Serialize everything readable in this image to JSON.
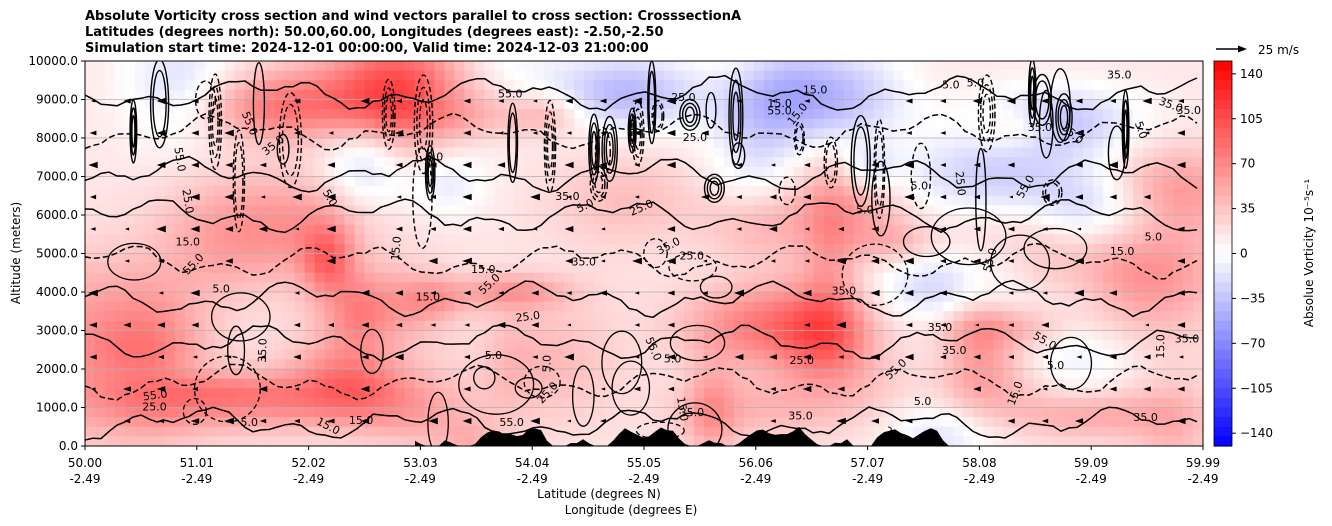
{
  "chart_data": {
    "type": "heatmap",
    "title_lines": [
      "Absolute Vorticity cross section and wind vectors parallel to cross section: CrosssectionA",
      "Latitudes (degrees north): 50.00,60.00, Longitudes (degrees east): -2.50,-2.50",
      "Simulation start time: 2024-12-01 00:00:00, Valid time: 2024-12-03 21:00:00"
    ],
    "ylabel": "Altitude (meters)",
    "xlabel_lines": [
      "Latitude (degrees N)",
      "Longitude (degrees E)"
    ],
    "ylim": [
      0,
      10000
    ],
    "yticks": [
      "0.0",
      "1000.0",
      "2000.0",
      "3000.0",
      "4000.0",
      "5000.0",
      "6000.0",
      "7000.0",
      "8000.0",
      "9000.0",
      "10000.0"
    ],
    "xticks": [
      {
        "lat": "50.00",
        "lon": "-2.49"
      },
      {
        "lat": "51.01",
        "lon": "-2.49"
      },
      {
        "lat": "52.02",
        "lon": "-2.49"
      },
      {
        "lat": "53.03",
        "lon": "-2.49"
      },
      {
        "lat": "54.04",
        "lon": "-2.49"
      },
      {
        "lat": "55.05",
        "lon": "-2.49"
      },
      {
        "lat": "56.06",
        "lon": "-2.49"
      },
      {
        "lat": "57.07",
        "lon": "-2.49"
      },
      {
        "lat": "58.08",
        "lon": "-2.49"
      },
      {
        "lat": "59.09",
        "lon": "-2.49"
      },
      {
        "lat": "59.99",
        "lon": "-2.49"
      }
    ],
    "colorbar": {
      "label": "Absolue Vorticity 10⁻⁵s⁻¹",
      "ticks": [
        "140",
        "105",
        "70",
        "35",
        "0",
        "−35",
        "−70",
        "−105",
        "−140"
      ],
      "range": [
        -150,
        150
      ],
      "colors": [
        "#0000ff",
        "#ffffff",
        "#ff0000"
      ]
    },
    "quiver_key": "25 m/s",
    "contour_labels": [
      "5.0",
      "15.0",
      "25.0",
      "35.0",
      "55.0"
    ],
    "grid": "horizontal",
    "terrain_color": "#000000",
    "contour_color": "#000000",
    "vector_color": "#000000"
  }
}
